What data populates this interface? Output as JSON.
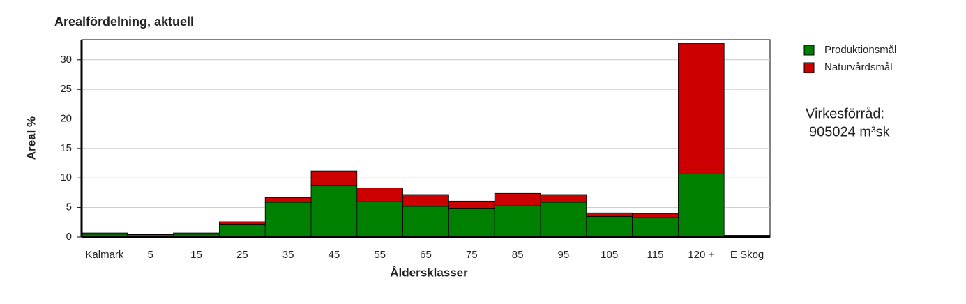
{
  "chart_data": {
    "type": "stacked_bar",
    "title": "Arealfördelning, aktuell",
    "x_label": "Åldersklasser",
    "y_label": "Areal %",
    "categories": [
      "Kalmark",
      "5",
      "15",
      "25",
      "35",
      "45",
      "55",
      "65",
      "75",
      "85",
      "95",
      "105",
      "115",
      "120 +",
      "E Skog"
    ],
    "series": [
      {
        "name": "Produktionsmål",
        "color": "#008000",
        "values": [
          0.5,
          0.4,
          0.5,
          2.2,
          5.9,
          8.7,
          6.0,
          5.2,
          4.8,
          5.3,
          5.9,
          3.5,
          3.3,
          10.7,
          0.3
        ]
      },
      {
        "name": "Naturvårdsmål",
        "color": "#cc0000",
        "values": [
          0.2,
          0.1,
          0.2,
          0.4,
          0.8,
          2.5,
          2.3,
          2.0,
          1.3,
          2.1,
          1.3,
          0.6,
          0.7,
          22.1,
          0
        ]
      }
    ],
    "ylim": [
      0,
      33.4
    ],
    "yticks": [
      0,
      5,
      10,
      15,
      20,
      25,
      30
    ],
    "grid": true,
    "legend": "right",
    "annotations": [
      "Virkesförråd:",
      "905024 m³sk"
    ]
  }
}
